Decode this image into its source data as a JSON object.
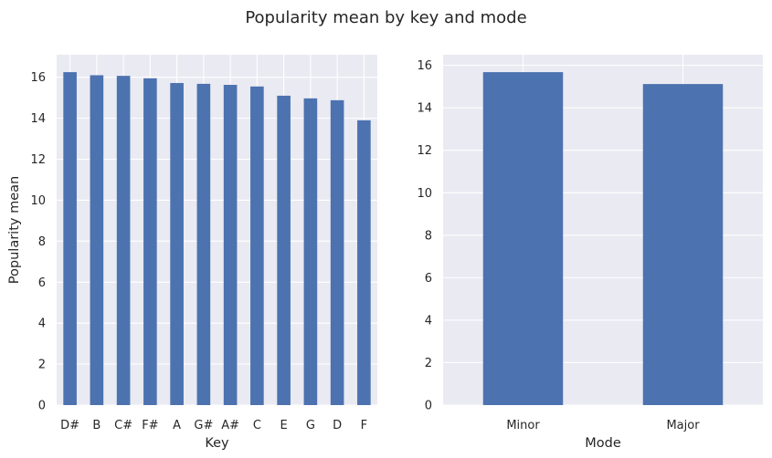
{
  "figure": {
    "title": "Popularity mean by key and mode",
    "background": "#ffffff",
    "axes_background": "#eaeaf2",
    "grid_color": "#ffffff",
    "bar_color": "#4c72b0",
    "text_color": "#262626"
  },
  "chart_data": [
    {
      "type": "bar",
      "title": "",
      "xlabel": "Key",
      "ylabel": "Popularity mean",
      "categories": [
        "D#",
        "B",
        "C#",
        "F#",
        "A",
        "G#",
        "A#",
        "C",
        "E",
        "G",
        "D",
        "F"
      ],
      "values": [
        16.25,
        16.1,
        16.07,
        15.95,
        15.72,
        15.68,
        15.63,
        15.55,
        15.1,
        14.97,
        14.88,
        13.9
      ],
      "ylim": [
        0,
        17.1
      ],
      "yticks": [
        0,
        2,
        4,
        6,
        8,
        10,
        12,
        14,
        16
      ],
      "ytick_labels": [
        "0",
        "2",
        "4",
        "6",
        "8",
        "10",
        "12",
        "14",
        "16"
      ],
      "grid": true,
      "legend": false
    },
    {
      "type": "bar",
      "title": "",
      "xlabel": "Mode",
      "ylabel": "",
      "categories": [
        "Minor",
        "Major"
      ],
      "values": [
        15.68,
        15.12
      ],
      "ylim": [
        0,
        16.5
      ],
      "yticks": [
        0,
        2,
        4,
        6,
        8,
        10,
        12,
        14,
        16
      ],
      "ytick_labels": [
        "0",
        "2",
        "4",
        "6",
        "8",
        "10",
        "12",
        "14",
        "16"
      ],
      "grid": true,
      "legend": false
    }
  ]
}
